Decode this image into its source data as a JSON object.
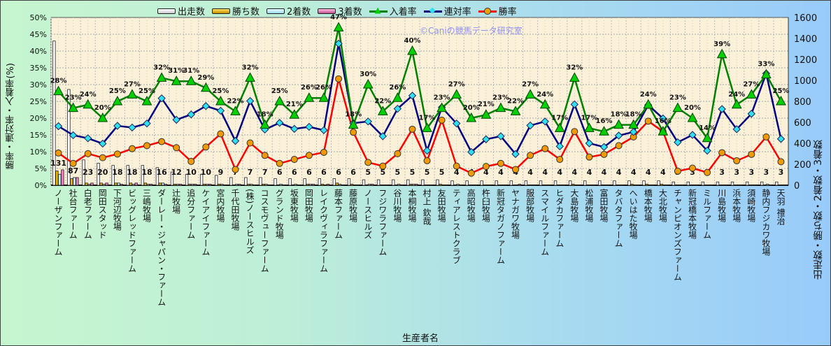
{
  "chart_data": {
    "type": "bar+line",
    "watermark": "©Caniの競馬データ研究室",
    "xlabel": "生産者名",
    "ylabel_left": "勝率・連対率・入着率(%)",
    "ylabel_right": "出走数・勝ち数・2着数・3着数",
    "ylim_left": [
      0,
      50
    ],
    "ylim_right": [
      0,
      1600
    ],
    "yticks_left": [
      "0%",
      "5%",
      "10%",
      "15%",
      "20%",
      "25%",
      "30%",
      "35%",
      "40%",
      "45%",
      "50%"
    ],
    "yticks_right": [
      "0",
      "200",
      "400",
      "600",
      "800",
      "1000",
      "1200",
      "1400",
      "1600"
    ],
    "legend": [
      "出走数",
      "勝ち数",
      "2着数",
      "3着数",
      "入着率",
      "連対率",
      "勝率"
    ],
    "legend_position": "top",
    "colors": {
      "runs": "#ffffff",
      "wins": "#e8b800",
      "second": "#bfefff",
      "third": "#f080c0",
      "inchaku": "#008000",
      "rentai": "#000080",
      "win_rate": "#ff0000"
    },
    "categories": [
      "ノーザンファーム",
      "社台ファーム",
      "白老ファーム",
      "岡田スタッド",
      "下河辺牧場",
      "ビッグレッドファーム",
      "三嶋牧場",
      "ダーレー・ジャパン・ファーム",
      "辻牧場",
      "追分ファーム",
      "ケイアイファーム",
      "宮内牧場",
      "千代田牧場",
      "(株)ノースヒルズ",
      "コスモヴューファーム",
      "グランド牧場",
      "坂東牧場",
      "岡田牧場",
      "レイクヴィラファーム",
      "藤本ファーム",
      "藤原牧場",
      "ノースヒルズ",
      "フジワラファーム",
      "谷川牧場",
      "本桐牧場",
      "村上 欽哉",
      "友田牧場",
      "ティアレストクラブ",
      "高昭牧場",
      "杵臼牧場",
      "新冠タガノファーム",
      "ヤナガワ牧場",
      "服部牧場",
      "スマイルファーム",
      "ヒダカファーム",
      "大島牧場",
      "松浦牧場",
      "富田牧場",
      "タバタファーム",
      "へいはた牧場",
      "橋本牧場",
      "大北牧場",
      "チャンピオンズファーム",
      "新冠橋本牧場",
      "ミルファーム",
      "川島牧場",
      "浜本牧場",
      "須崎牧場",
      "静内フジカワ牧場",
      "天羽 禮治"
    ],
    "runs": [
      131,
      87,
      23,
      20,
      18,
      18,
      18,
      16,
      12,
      10,
      10,
      9,
      7,
      7,
      7,
      6,
      6,
      6,
      6,
      6,
      6,
      5,
      5,
      5,
      5,
      5,
      5,
      4,
      4,
      4,
      4,
      4,
      4,
      4,
      4,
      4,
      4,
      4,
      4,
      4,
      4,
      4,
      3,
      3,
      3,
      3,
      3,
      3,
      3,
      3
    ],
    "inchaku_rate": [
      28,
      23,
      24,
      20,
      25,
      27,
      25,
      32,
      31,
      31,
      29,
      25,
      22,
      32,
      18,
      25,
      21,
      26,
      26,
      47,
      18,
      30,
      22,
      26,
      40,
      17,
      23,
      27,
      20,
      21,
      23,
      22,
      27,
      24,
      17,
      32,
      17,
      16,
      18,
      18,
      24,
      16,
      23,
      20,
      14,
      39,
      24,
      27,
      33,
      25
    ],
    "inchaku_labels": [
      "28%",
      "23%",
      "24%",
      "20%",
      "25%",
      "27%",
      "25%",
      "32%",
      "31%",
      "31%",
      "29%",
      "25%",
      "22%",
      "32%",
      "18%",
      "25%",
      "21%",
      "26%",
      "26%",
      "47%",
      "18%",
      "30%",
      "22%",
      "26%",
      "40%",
      "17%",
      "23%",
      "27%",
      "20%",
      "21%",
      "23%",
      "22%",
      "27%",
      "24%",
      "17%",
      "32%",
      "17%",
      "16%",
      "18%",
      "18%",
      "24%",
      "16%",
      "23%",
      "20%",
      "14%",
      "39%",
      "24%",
      "27%",
      "33%",
      "25%"
    ],
    "rentai_rate": [
      17.6,
      14.9,
      14.0,
      12.4,
      17.7,
      17.2,
      18.4,
      25.9,
      19.5,
      21.1,
      23.6,
      22.2,
      13.2,
      25.1,
      16.6,
      18.6,
      16.8,
      17.4,
      16.4,
      42.2,
      18.5,
      19.0,
      14.6,
      22.8,
      26.7,
      10.3,
      23.2,
      18.4,
      9.9,
      13.7,
      14.6,
      9.3,
      17.8,
      19.0,
      11.6,
      24.1,
      12.5,
      11.4,
      14.8,
      15.9,
      23.9,
      19.9,
      12.8,
      15.0,
      10.3,
      22.7,
      16.7,
      21.3,
      33.3,
      13.8
    ],
    "win_rate": [
      9.6,
      6.5,
      9.4,
      8.2,
      9.3,
      10.9,
      11.8,
      13.0,
      11.2,
      7.1,
      11.4,
      15.3,
      4.7,
      12.6,
      8.9,
      6.5,
      7.7,
      8.9,
      9.8,
      31.7,
      15.8,
      6.8,
      5.7,
      9.4,
      16.7,
      7.3,
      19.4,
      5.7,
      3.6,
      5.6,
      6.5,
      4.7,
      8.9,
      10.9,
      7.7,
      16.0,
      8.4,
      9.2,
      11.8,
      14.4,
      19.1,
      16.0,
      4.2,
      5.1,
      3.8,
      9.7,
      7.3,
      9.2,
      14.4,
      7.0
    ]
  }
}
